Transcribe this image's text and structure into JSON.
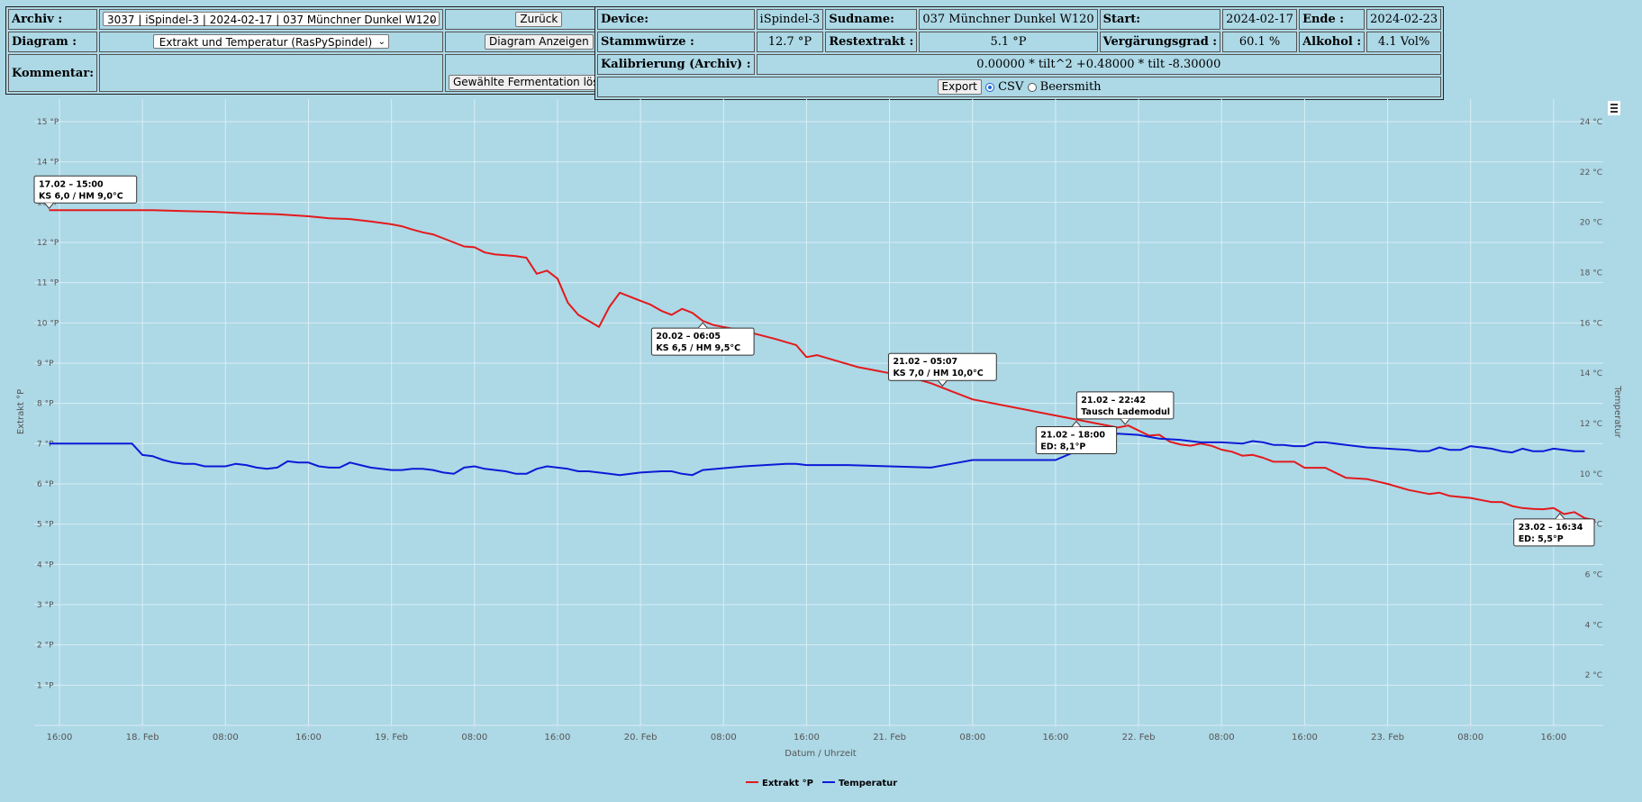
{
  "form": {
    "archiv_label": "Archiv :",
    "archiv_value": "3037 | iSpindel-3 | 2024-02-17 | 037 Münchner Dunkel W120",
    "back_button": "Zurück",
    "diagram_label": "Diagram :",
    "diagram_value": "Extrakt und Temperatur (RasPySpindel)",
    "show_diagram_button": "Diagram Anzeigen",
    "comment_label": "Kommentar:",
    "delete_button": "Gewählte Fermentation löschen"
  },
  "info": {
    "device_label": "Device:",
    "device_value": "iSpindel-3",
    "sudname_label": "Sudname:",
    "sudname_value": "037 Münchner Dunkel W120",
    "start_label": "Start:",
    "start_value": "2024-02-17",
    "ende_label": "Ende :",
    "ende_value": "2024-02-23",
    "stammwuerze_label": "Stammwürze :",
    "stammwuerze_value": "12.7 °P",
    "restextrakt_label": "Restextrakt :",
    "restextrakt_value": "5.1 °P",
    "vergaerungsgrad_label": "Vergärungsgrad :",
    "vergaerungsgrad_value": "60.1 %",
    "alkohol_label": "Alkohol :",
    "alkohol_value": "4.1 Vol%",
    "kalibrierung_label": "Kalibrierung (Archiv) :",
    "kalibrierung_value": "0.00000 * tilt^2 +0.48000 * tilt -8.30000",
    "export_button": "Export",
    "csv_label": "CSV",
    "beersmith_label": "Beersmith"
  },
  "chart_data": {
    "type": "line",
    "xlabel": "Datum / Uhrzeit",
    "ylabel_left": "Extrakt °P",
    "ylabel_right": "Temperatur",
    "x_range_hours": [
      -0.4,
      150
    ],
    "x_ticks": [
      {
        "h": 0,
        "label": "16:00"
      },
      {
        "h": 8,
        "label": "18. Feb"
      },
      {
        "h": 16,
        "label": "08:00"
      },
      {
        "h": 24,
        "label": "16:00"
      },
      {
        "h": 32,
        "label": "19. Feb"
      },
      {
        "h": 40,
        "label": "08:00"
      },
      {
        "h": 48,
        "label": "16:00"
      },
      {
        "h": 56,
        "label": "20. Feb"
      },
      {
        "h": 64,
        "label": "08:00"
      },
      {
        "h": 72,
        "label": "16:00"
      },
      {
        "h": 80,
        "label": "21. Feb"
      },
      {
        "h": 88,
        "label": "08:00"
      },
      {
        "h": 96,
        "label": "16:00"
      },
      {
        "h": 104,
        "label": "22. Feb"
      },
      {
        "h": 112,
        "label": "08:00"
      },
      {
        "h": 120,
        "label": "16:00"
      },
      {
        "h": 128,
        "label": "23. Feb"
      },
      {
        "h": 136,
        "label": "08:00"
      },
      {
        "h": 144,
        "label": "16:00"
      }
    ],
    "y_left": {
      "min": 0,
      "max": 15,
      "ticks": [
        1,
        2,
        3,
        4,
        5,
        6,
        7,
        8,
        9,
        10,
        11,
        12,
        13,
        14,
        15
      ],
      "unit": " °P"
    },
    "y_right": {
      "min": 0,
      "max": 24,
      "ticks": [
        2,
        4,
        6,
        8,
        10,
        12,
        14,
        16,
        18,
        20,
        22,
        24
      ],
      "unit": " °C"
    },
    "series": [
      {
        "name": "Extrakt °P",
        "color": "#e31a1c",
        "axis": "left",
        "points": [
          [
            -1,
            12.8
          ],
          [
            1,
            12.8
          ],
          [
            6,
            12.8
          ],
          [
            9,
            12.8
          ],
          [
            12,
            12.78
          ],
          [
            15,
            12.76
          ],
          [
            18,
            12.72
          ],
          [
            21,
            12.7
          ],
          [
            24,
            12.65
          ],
          [
            26,
            12.6
          ],
          [
            28,
            12.58
          ],
          [
            30,
            12.52
          ],
          [
            32,
            12.45
          ],
          [
            33,
            12.4
          ],
          [
            34,
            12.32
          ],
          [
            35,
            12.25
          ],
          [
            36,
            12.2
          ],
          [
            37,
            12.1
          ],
          [
            38,
            12.0
          ],
          [
            39,
            11.9
          ],
          [
            40,
            11.88
          ],
          [
            41,
            11.75
          ],
          [
            42,
            11.7
          ],
          [
            43,
            11.68
          ],
          [
            44,
            11.66
          ],
          [
            45,
            11.62
          ],
          [
            46,
            11.22
          ],
          [
            47,
            11.3
          ],
          [
            48,
            11.1
          ],
          [
            49,
            10.5
          ],
          [
            50,
            10.2
          ],
          [
            52,
            9.9
          ],
          [
            53,
            10.4
          ],
          [
            54,
            10.75
          ],
          [
            55,
            10.65
          ],
          [
            56,
            10.55
          ],
          [
            57,
            10.45
          ],
          [
            58,
            10.3
          ],
          [
            59,
            10.2
          ],
          [
            60,
            10.35
          ],
          [
            61,
            10.25
          ],
          [
            62,
            10.05
          ],
          [
            63,
            9.95
          ],
          [
            66,
            9.8
          ],
          [
            69,
            9.6
          ],
          [
            71,
            9.45
          ],
          [
            72,
            9.15
          ],
          [
            73,
            9.2
          ],
          [
            75,
            9.05
          ],
          [
            77,
            8.9
          ],
          [
            79,
            8.8
          ],
          [
            80,
            8.75
          ],
          [
            82,
            8.65
          ],
          [
            84,
            8.5
          ],
          [
            86,
            8.3
          ],
          [
            88,
            8.1
          ],
          [
            92,
            7.9
          ],
          [
            96,
            7.7
          ],
          [
            100,
            7.5
          ],
          [
            102,
            7.4
          ],
          [
            103,
            7.45
          ],
          [
            105,
            7.2
          ],
          [
            106,
            7.22
          ],
          [
            107,
            7.05
          ],
          [
            108,
            6.98
          ],
          [
            109,
            6.95
          ],
          [
            110,
            7.0
          ],
          [
            111,
            6.95
          ],
          [
            112,
            6.85
          ],
          [
            113,
            6.8
          ],
          [
            114,
            6.7
          ],
          [
            115,
            6.72
          ],
          [
            116,
            6.65
          ],
          [
            117,
            6.55
          ],
          [
            119,
            6.55
          ],
          [
            120,
            6.4
          ],
          [
            122,
            6.4
          ],
          [
            124,
            6.15
          ],
          [
            126,
            6.12
          ],
          [
            128,
            6.0
          ],
          [
            130,
            5.85
          ],
          [
            132,
            5.75
          ],
          [
            133,
            5.78
          ],
          [
            134,
            5.7
          ],
          [
            136,
            5.65
          ],
          [
            138,
            5.55
          ],
          [
            139,
            5.55
          ],
          [
            140,
            5.45
          ],
          [
            141,
            5.4
          ],
          [
            142,
            5.38
          ],
          [
            143,
            5.37
          ],
          [
            144,
            5.4
          ],
          [
            145,
            5.25
          ],
          [
            146,
            5.3
          ],
          [
            147,
            5.15
          ],
          [
            148,
            5.1
          ]
        ]
      },
      {
        "name": "Temperatur",
        "color": "#0b1bd6",
        "axis": "right",
        "points": [
          [
            -1,
            11.2
          ],
          [
            5,
            11.2
          ],
          [
            7,
            11.2
          ],
          [
            8,
            10.75
          ],
          [
            9,
            10.7
          ],
          [
            10,
            10.55
          ],
          [
            11,
            10.45
          ],
          [
            12,
            10.4
          ],
          [
            13,
            10.4
          ],
          [
            14,
            10.3
          ],
          [
            15,
            10.3
          ],
          [
            16,
            10.3
          ],
          [
            17,
            10.4
          ],
          [
            18,
            10.35
          ],
          [
            19,
            10.25
          ],
          [
            20,
            10.2
          ],
          [
            21,
            10.25
          ],
          [
            22,
            10.5
          ],
          [
            23,
            10.45
          ],
          [
            24,
            10.45
          ],
          [
            25,
            10.3
          ],
          [
            26,
            10.25
          ],
          [
            27,
            10.25
          ],
          [
            28,
            10.45
          ],
          [
            29,
            10.35
          ],
          [
            30,
            10.25
          ],
          [
            32,
            10.15
          ],
          [
            33,
            10.15
          ],
          [
            34,
            10.2
          ],
          [
            35,
            10.2
          ],
          [
            36,
            10.15
          ],
          [
            37,
            10.05
          ],
          [
            38,
            10.0
          ],
          [
            39,
            10.25
          ],
          [
            40,
            10.3
          ],
          [
            41,
            10.2
          ],
          [
            42,
            10.15
          ],
          [
            43,
            10.1
          ],
          [
            44,
            10.0
          ],
          [
            45,
            10.0
          ],
          [
            46,
            10.2
          ],
          [
            47,
            10.3
          ],
          [
            48,
            10.25
          ],
          [
            49,
            10.2
          ],
          [
            50,
            10.1
          ],
          [
            51,
            10.1
          ],
          [
            52,
            10.05
          ],
          [
            53,
            10.0
          ],
          [
            54,
            9.95
          ],
          [
            56,
            10.05
          ],
          [
            58,
            10.1
          ],
          [
            59,
            10.1
          ],
          [
            60,
            10.0
          ],
          [
            61,
            9.95
          ],
          [
            62,
            10.15
          ],
          [
            66,
            10.3
          ],
          [
            70,
            10.4
          ],
          [
            71,
            10.4
          ],
          [
            72,
            10.35
          ],
          [
            76,
            10.35
          ],
          [
            80,
            10.3
          ],
          [
            84,
            10.25
          ],
          [
            86,
            10.4
          ],
          [
            88,
            10.55
          ],
          [
            94,
            10.55
          ],
          [
            96,
            10.55
          ],
          [
            98,
            10.9
          ],
          [
            100,
            11.3
          ],
          [
            102,
            11.6
          ],
          [
            104,
            11.55
          ],
          [
            106,
            11.4
          ],
          [
            108,
            11.35
          ],
          [
            110,
            11.25
          ],
          [
            112,
            11.25
          ],
          [
            114,
            11.2
          ],
          [
            115,
            11.3
          ],
          [
            116,
            11.25
          ],
          [
            117,
            11.15
          ],
          [
            118,
            11.15
          ],
          [
            119,
            11.1
          ],
          [
            120,
            11.1
          ],
          [
            121,
            11.25
          ],
          [
            122,
            11.25
          ],
          [
            124,
            11.15
          ],
          [
            126,
            11.05
          ],
          [
            128,
            11.0
          ],
          [
            130,
            10.95
          ],
          [
            131,
            10.9
          ],
          [
            132,
            10.9
          ],
          [
            133,
            11.05
          ],
          [
            134,
            10.95
          ],
          [
            135,
            10.95
          ],
          [
            136,
            11.1
          ],
          [
            137,
            11.05
          ],
          [
            138,
            11.0
          ],
          [
            139,
            10.9
          ],
          [
            140,
            10.85
          ],
          [
            141,
            11.0
          ],
          [
            142,
            10.9
          ],
          [
            143,
            10.9
          ],
          [
            144,
            11.0
          ],
          [
            145,
            10.95
          ],
          [
            146,
            10.9
          ],
          [
            147,
            10.9
          ]
        ]
      }
    ],
    "annotations": [
      {
        "line1": "17.02 – 15:00",
        "line2": "KS 6,0 / HM 9,0°C",
        "h": -1,
        "series": 0,
        "pos": "above"
      },
      {
        "line1": "20.02 – 06:05",
        "line2": "KS 6,5 / HM 9,5°C",
        "h": 62,
        "series": 0,
        "pos": "below"
      },
      {
        "line1": "21.02 – 05:07",
        "line2": "KS 7,0 / HM 10,0°C",
        "h": 85.1,
        "series": 0,
        "pos": "above"
      },
      {
        "line1": "21.02 – 22:42",
        "line2": "Tausch Lademodul",
        "h": 102.7,
        "series": 0,
        "pos": "above"
      },
      {
        "line1": "21.02 – 18:00",
        "line2": "ED: 8,1°P",
        "h": 98,
        "series": 0,
        "pos": "below"
      },
      {
        "line1": "23.02 – 16:34",
        "line2": "ED: 5,5°P",
        "h": 144.6,
        "series": 0,
        "pos": "below"
      }
    ],
    "legend": [
      {
        "name": "Extrakt °P",
        "color": "#e31a1c"
      },
      {
        "name": "Temperatur",
        "color": "#0b1bd6"
      }
    ],
    "legend_position": "bottom-center",
    "grid": true
  }
}
